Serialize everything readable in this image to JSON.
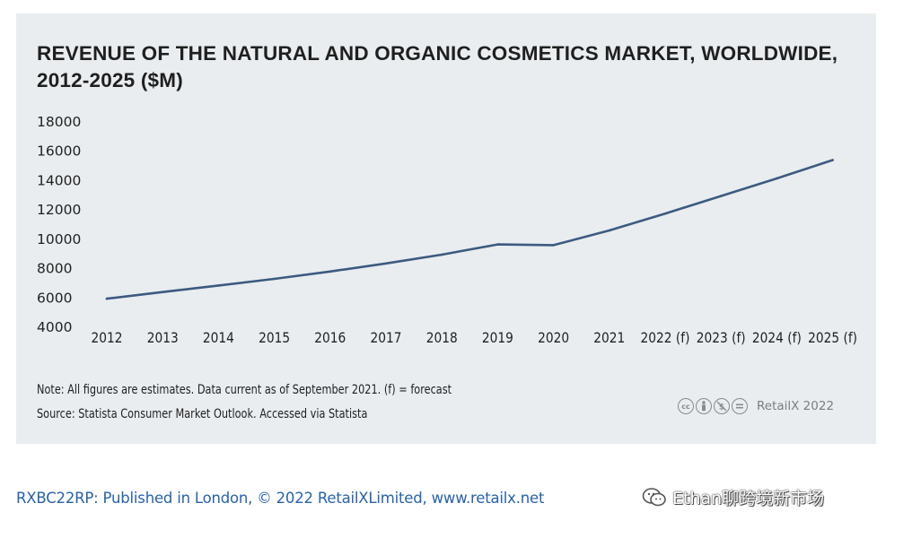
{
  "chart_data": {
    "type": "line",
    "title": "REVENUE OF THE NATURAL AND ORGANIC COSMETICS MARKET, WORLDWIDE, 2012-2025 ($M)",
    "categories": [
      "2012",
      "2013",
      "2014",
      "2015",
      "2016",
      "2017",
      "2018",
      "2019",
      "2020",
      "2021",
      "2022 (f)",
      "2023 (f)",
      "2024 (f)",
      "2025 (f)"
    ],
    "series": [
      {
        "name": "Revenue ($M)",
        "color": "#3d5a80",
        "values": [
          5950,
          6400,
          6850,
          7300,
          7800,
          8350,
          8950,
          9650,
          9600,
          10600,
          11750,
          12950,
          14150,
          15400
        ]
      }
    ],
    "yticks": [
      4000,
      6000,
      8000,
      10000,
      12000,
      14000,
      16000,
      18000
    ],
    "ylim": [
      4000,
      18000
    ],
    "xlabel": "",
    "ylabel": "",
    "grid": false
  },
  "note": "Note: All figures are estimates. Data current as of September 2021. (f) = forecast",
  "source": "Source: Statista Consumer Market Outlook. Accessed via Statista",
  "license_icons": [
    "cc-icon",
    "by-icon",
    "nc-icon",
    "nd-icon"
  ],
  "brand": "RetailX 2022",
  "footer": "RXBC22RP: Published in London, © 2022 RetailXLimited, www.retailx.net",
  "watermark": "Ethan聊跨境新市场"
}
